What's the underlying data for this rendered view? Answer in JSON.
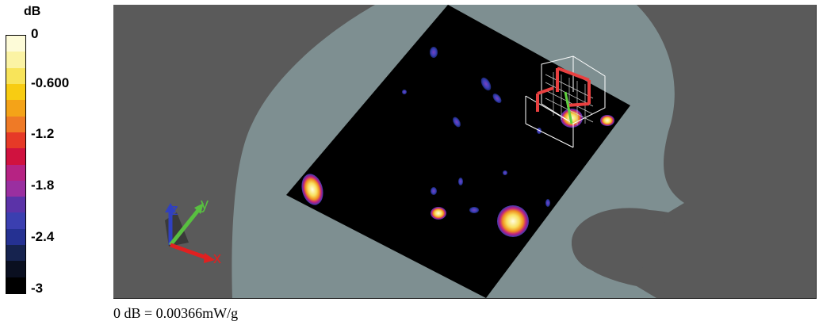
{
  "legend": {
    "unit": "dB",
    "ticks": [
      "0",
      "-0.600",
      "-1.2",
      "-1.8",
      "-2.4",
      "-3"
    ],
    "colors": [
      "#fdfbd8",
      "#fbf3a4",
      "#f8e45a",
      "#f8cc12",
      "#f4a318",
      "#ef7a26",
      "#e63a27",
      "#d0123f",
      "#b62383",
      "#9a2fa0",
      "#5b33a8",
      "#3b3fb0",
      "#253192",
      "#16234f",
      "#0a0f20",
      "#000000"
    ]
  },
  "viewport": {
    "background_color": "#5a5a5a",
    "phantom_color": "#7e8f91",
    "scan_area_color": "#000000",
    "axes": {
      "x": {
        "label": "x",
        "color": "#e02020"
      },
      "y": {
        "label": "y",
        "color": "#58c040"
      },
      "z": {
        "label": "z",
        "color": "#3040c0"
      }
    }
  },
  "caption": "0 dB = 0.00366mW/g"
}
